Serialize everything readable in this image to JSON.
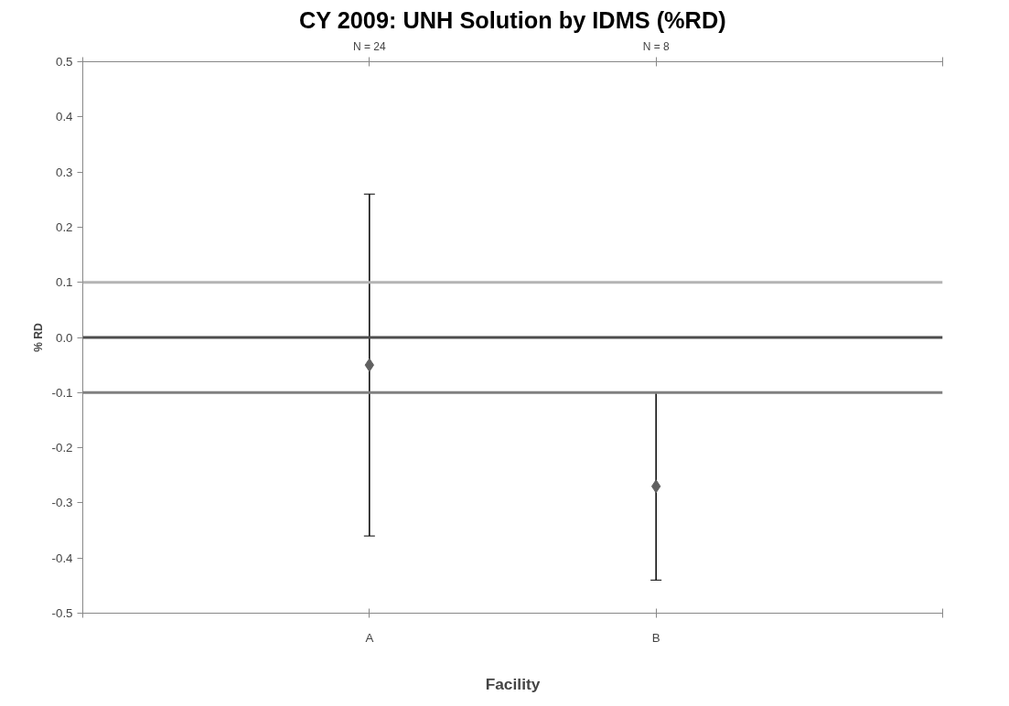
{
  "chart_data": {
    "type": "scatter",
    "title": "CY 2009: UNH Solution by IDMS (%RD)",
    "xlabel": "Facility",
    "ylabel": "% RD",
    "categories": [
      "A",
      "B"
    ],
    "series": [
      {
        "color": "#606060",
        "values": [
          -0.05,
          -0.27
        ],
        "errors": [
          [
            -0.36,
            0.26
          ],
          [
            -0.44,
            -0.1
          ]
        ]
      }
    ],
    "ylim": [
      -0.5,
      0.5
    ],
    "yticks": [
      {
        "value": 0.5,
        "label": "0.5"
      },
      {
        "value": 0.4,
        "label": "0.4"
      },
      {
        "value": 0.3,
        "label": "0.3"
      },
      {
        "value": 0.2,
        "label": "0.2"
      },
      {
        "value": 0.1,
        "label": "0.1"
      },
      {
        "value": 0,
        "label": "0.0"
      },
      {
        "value": -0.1,
        "label": "-0.1"
      },
      {
        "value": -0.2,
        "label": "-0.2"
      },
      {
        "value": -0.3,
        "label": "-0.3"
      },
      {
        "value": -0.4,
        "label": "-0.4"
      },
      {
        "value": -0.5,
        "label": "-0.5"
      }
    ],
    "ref_lines": [
      {
        "axis": "y",
        "value": 0.1,
        "color": "#b4b4b4"
      },
      {
        "axis": "y",
        "value": 0,
        "color": "#4d4d4d"
      },
      {
        "axis": "y",
        "value": -0.1,
        "color": "#808080"
      }
    ],
    "annotations": [
      {
        "text": "N = 24",
        "x": "A"
      },
      {
        "text": "N = 8",
        "x": "B"
      }
    ],
    "marker": "diamond",
    "grid": false
  }
}
